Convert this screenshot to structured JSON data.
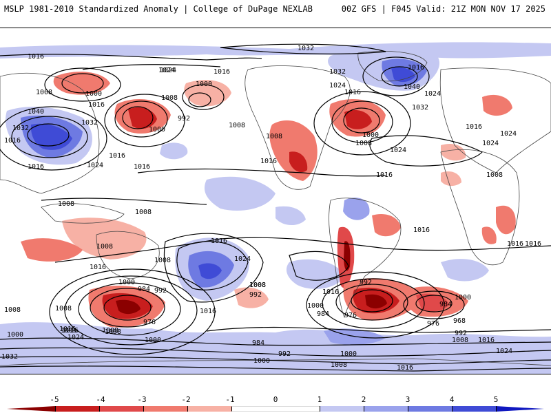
{
  "header": {
    "left_title": "MSLP 1981-2010 Standardized Anomaly | College of DuPage NEXLAB",
    "right_title": "00Z GFS | F045 Valid: 21Z MON NOV 17 2025"
  },
  "colors": {
    "neg5": "#8b0000",
    "neg4": "#c81e1e",
    "neg3": "#e0494a",
    "neg2": "#f07a6e",
    "neg1": "#f7b1a5",
    "neutral": "#ffffff",
    "pos1": "#c4c8f2",
    "pos2": "#9aa2ec",
    "pos3": "#6e7ae2",
    "pos4": "#3f4bd6",
    "pos5": "#1018c0",
    "land": "#444444",
    "contour": "#000000"
  },
  "colorbar": {
    "ticks": [
      "-5",
      "-4",
      "-3",
      "-2",
      "-1",
      "0",
      "1",
      "2",
      "3",
      "4",
      "5"
    ]
  },
  "isobar_labels": [
    "1016",
    "1024",
    "1016",
    "1032",
    "1032",
    "1024",
    "1008",
    "1000",
    "1016",
    "1008",
    "1000",
    "1008",
    "992",
    "1000",
    "1040",
    "1032",
    "1016",
    "1016",
    "1024",
    "1032",
    "1008",
    "1016",
    "1016",
    "1016",
    "1016",
    "1024",
    "1024",
    "1040",
    "1024",
    "1032",
    "1016",
    "1016",
    "1000",
    "1008",
    "1024",
    "1016",
    "1008",
    "1008",
    "1008",
    "1008",
    "1016",
    "1016",
    "1008",
    "1008",
    "1024",
    "1016",
    "1008",
    "1008",
    "1000",
    "984",
    "992",
    "976",
    "1016",
    "1008",
    "1016",
    "1024",
    "1008",
    "992",
    "1000",
    "1016",
    "984",
    "976",
    "992",
    "984",
    "1000",
    "968",
    "976",
    "992",
    "1008",
    "1016",
    "1000",
    "1016",
    "1008",
    "1032",
    "1016",
    "1024",
    "1000",
    "984",
    "1000",
    "992",
    "1000",
    "1008",
    "1016",
    "1024",
    "1016",
    "1016"
  ]
}
